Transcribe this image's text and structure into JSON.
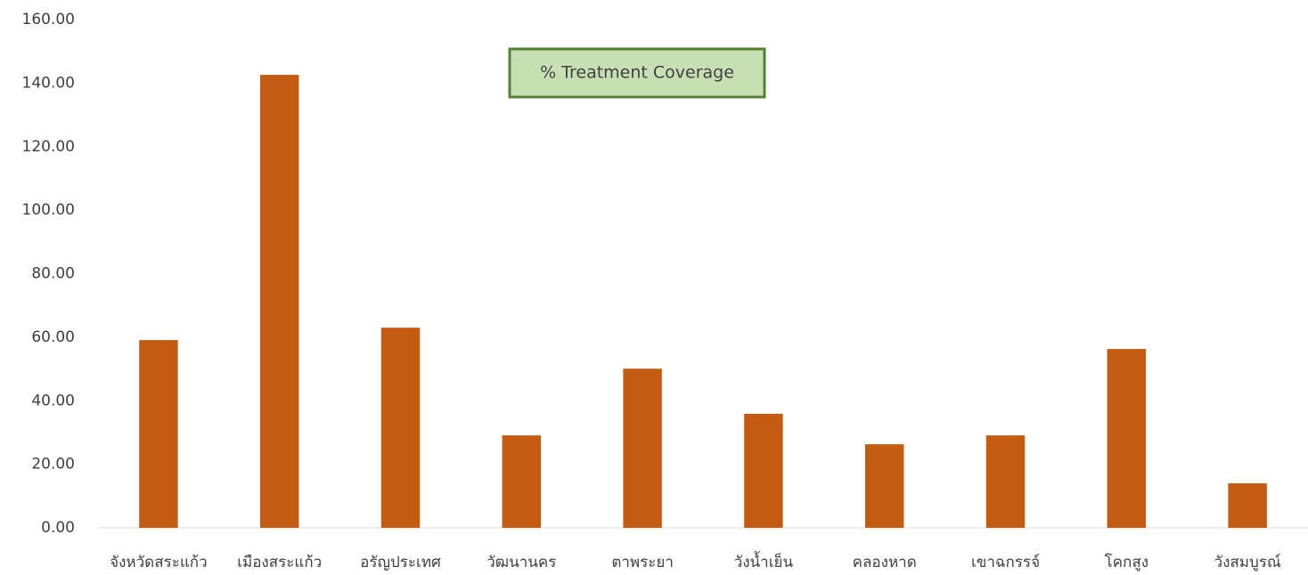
{
  "chart_data": {
    "type": "bar",
    "title": "% Treatment Coverage",
    "categories": [
      "จังหวัดสระแก้ว",
      "เมืองสระแก้ว",
      "อรัญประเทศ",
      "วัฒนานคร",
      "ตาพระยา",
      "วังน้ำเย็น",
      "คลองหาด",
      "เขาฉกรรจ์",
      "โคกสูง",
      "วังสมบูรณ์"
    ],
    "values": [
      59.1,
      142.6,
      63.0,
      29.1,
      50.1,
      35.9,
      26.3,
      29.1,
      56.3,
      14.0
    ],
    "color": "#c55a11",
    "ylim": [
      0,
      160
    ],
    "yticks": [
      {
        "value": 0,
        "label": "0.00"
      },
      {
        "value": 20,
        "label": "20.00"
      },
      {
        "value": 40,
        "label": "40.00"
      },
      {
        "value": 60,
        "label": "60.00"
      },
      {
        "value": 80,
        "label": "80.00"
      },
      {
        "value": 100,
        "label": "100.00"
      },
      {
        "value": 120,
        "label": "120.00"
      },
      {
        "value": 140,
        "label": "140.00"
      },
      {
        "value": 160,
        "label": "160.00"
      }
    ],
    "grid": false
  }
}
